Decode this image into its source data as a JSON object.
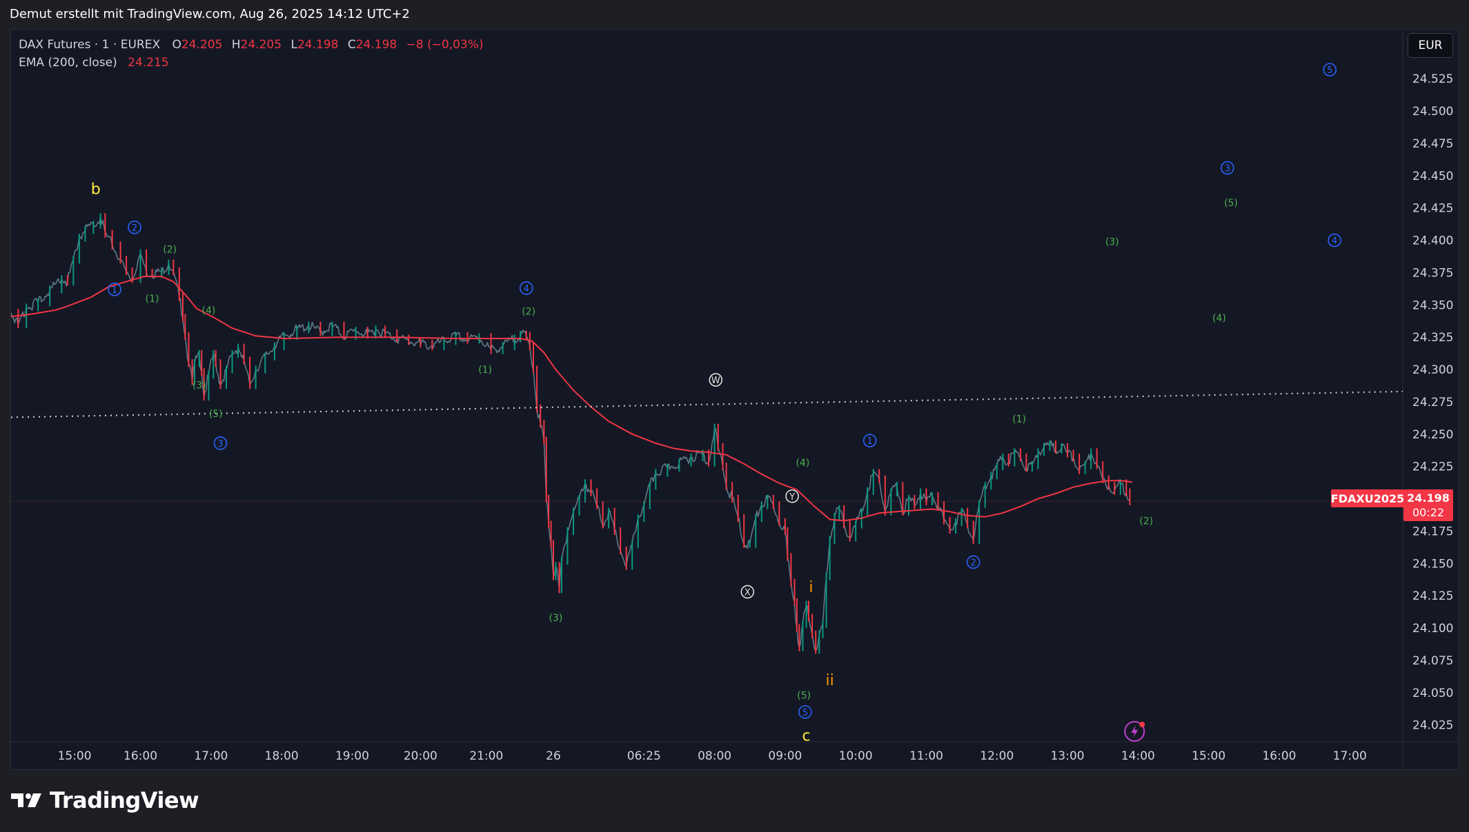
{
  "caption": "Demut erstellt mit TradingView.com, Aug 26, 2025 14:12 UTC+2",
  "legend": {
    "symbol": "DAX Futures · 1 · EUREX",
    "open_label": "O",
    "open": "24.205",
    "high_label": "H",
    "high": "24.205",
    "low_label": "L",
    "low": "24.198",
    "close_label": "C",
    "close": "24.198",
    "change": "−8 (−0,03%)",
    "ema_label": "EMA (200, close)",
    "ema_value": "24.215"
  },
  "currency": "EUR",
  "symbol_tag": "FDAXU2025",
  "price_tag": {
    "price": "24.198",
    "countdown": "00:22"
  },
  "brand": "TradingView",
  "colors": {
    "background": "#141824",
    "bear": "#f23645",
    "bull": "#089981",
    "ema": "#f23645",
    "wave_green": "#4caf50",
    "wave_blue": "#2962ff",
    "wave_yellow": "#ffeb3b",
    "wave_orange": "#ff9800",
    "wave_white": "#e0e0e0"
  },
  "chart_data": {
    "type": "line",
    "title": "DAX Futures · 1 · EUREX",
    "ylim": [
      24.012,
      24.563
    ],
    "y_ticks": [
      "24.525",
      "24.500",
      "24.475",
      "24.450",
      "24.425",
      "24.400",
      "24.375",
      "24.350",
      "24.325",
      "24.300",
      "24.275",
      "24.250",
      "24.225",
      "24.175",
      "24.150",
      "24.125",
      "24.100",
      "24.075",
      "24.050",
      "24.025"
    ],
    "x_ticks": [
      "15:00",
      "16:00",
      "17:00",
      "18:00",
      "19:00",
      "20:00",
      "21:00",
      "26",
      "06:25",
      "08:00",
      "09:00",
      "10:00",
      "11:00",
      "12:00",
      "13:00",
      "14:00",
      "15:00",
      "16:00",
      "17:00"
    ],
    "x_tick_index": [
      6,
      62,
      122,
      182,
      242,
      300,
      356,
      413,
      490,
      550,
      610,
      670,
      730,
      790,
      850,
      910,
      970,
      1030,
      1090
    ],
    "x_range": [
      -48,
      1135
    ],
    "price_series": {
      "name": "DAX Futures",
      "points": [
        [
          -48,
          24.344
        ],
        [
          -42,
          24.335
        ],
        [
          -35,
          24.348
        ],
        [
          -25,
          24.352
        ],
        [
          -15,
          24.362
        ],
        [
          -5,
          24.37
        ],
        [
          0,
          24.368
        ],
        [
          5,
          24.385
        ],
        [
          10,
          24.402
        ],
        [
          15,
          24.408
        ],
        [
          22,
          24.412
        ],
        [
          28,
          24.418
        ],
        [
          32,
          24.405
        ],
        [
          38,
          24.396
        ],
        [
          45,
          24.385
        ],
        [
          50,
          24.376
        ],
        [
          55,
          24.37
        ],
        [
          62,
          24.39
        ],
        [
          67,
          24.375
        ],
        [
          72,
          24.374
        ],
        [
          80,
          24.376
        ],
        [
          86,
          24.382
        ],
        [
          90,
          24.376
        ],
        [
          95,
          24.356
        ],
        [
          98,
          24.34
        ],
        [
          100,
          24.326
        ],
        [
          103,
          24.305
        ],
        [
          106,
          24.291
        ],
        [
          108,
          24.305
        ],
        [
          112,
          24.312
        ],
        [
          114,
          24.298
        ],
        [
          116,
          24.279
        ],
        [
          120,
          24.296
        ],
        [
          124,
          24.312
        ],
        [
          126,
          24.305
        ],
        [
          130,
          24.288
        ],
        [
          135,
          24.3
        ],
        [
          140,
          24.312
        ],
        [
          145,
          24.317
        ],
        [
          150,
          24.307
        ],
        [
          155,
          24.288
        ],
        [
          160,
          24.3
        ],
        [
          168,
          24.31
        ],
        [
          176,
          24.318
        ],
        [
          184,
          24.326
        ],
        [
          195,
          24.331
        ],
        [
          205,
          24.334
        ],
        [
          215,
          24.329
        ],
        [
          225,
          24.334
        ],
        [
          235,
          24.326
        ],
        [
          245,
          24.33
        ],
        [
          255,
          24.327
        ],
        [
          262,
          24.331
        ],
        [
          270,
          24.328
        ],
        [
          280,
          24.324
        ],
        [
          290,
          24.322
        ],
        [
          300,
          24.32
        ],
        [
          310,
          24.318
        ],
        [
          320,
          24.322
        ],
        [
          330,
          24.326
        ],
        [
          340,
          24.323
        ],
        [
          350,
          24.325
        ],
        [
          360,
          24.315
        ],
        [
          370,
          24.318
        ],
        [
          380,
          24.324
        ],
        [
          385,
          24.327
        ],
        [
          390,
          24.326
        ],
        [
          393,
          24.318
        ],
        [
          396,
          24.3
        ],
        [
          399,
          24.27
        ],
        [
          402,
          24.258
        ],
        [
          405,
          24.245
        ],
        [
          407,
          24.2
        ],
        [
          409,
          24.18
        ],
        [
          411,
          24.165
        ],
        [
          413,
          24.14
        ],
        [
          415,
          24.148
        ],
        [
          418,
          24.13
        ],
        [
          420,
          24.152
        ],
        [
          425,
          24.175
        ],
        [
          430,
          24.19
        ],
        [
          435,
          24.2
        ],
        [
          440,
          24.212
        ],
        [
          445,
          24.205
        ],
        [
          450,
          24.195
        ],
        [
          455,
          24.18
        ],
        [
          460,
          24.19
        ],
        [
          465,
          24.175
        ],
        [
          470,
          24.16
        ],
        [
          475,
          24.148
        ],
        [
          480,
          24.165
        ],
        [
          485,
          24.185
        ],
        [
          490,
          24.195
        ],
        [
          495,
          24.21
        ],
        [
          500,
          24.22
        ],
        [
          510,
          24.224
        ],
        [
          520,
          24.228
        ],
        [
          530,
          24.232
        ],
        [
          540,
          24.235
        ],
        [
          545,
          24.228
        ],
        [
          550,
          24.255
        ],
        [
          553,
          24.24
        ],
        [
          557,
          24.225
        ],
        [
          560,
          24.21
        ],
        [
          565,
          24.2
        ],
        [
          570,
          24.185
        ],
        [
          575,
          24.165
        ],
        [
          580,
          24.165
        ],
        [
          585,
          24.185
        ],
        [
          590,
          24.195
        ],
        [
          595,
          24.2
        ],
        [
          600,
          24.195
        ],
        [
          605,
          24.182
        ],
        [
          610,
          24.175
        ],
        [
          612,
          24.155
        ],
        [
          615,
          24.135
        ],
        [
          618,
          24.12
        ],
        [
          620,
          24.1
        ],
        [
          622,
          24.085
        ],
        [
          625,
          24.103
        ],
        [
          628,
          24.118
        ],
        [
          630,
          24.108
        ],
        [
          633,
          24.095
        ],
        [
          636,
          24.083
        ],
        [
          639,
          24.095
        ],
        [
          642,
          24.103
        ],
        [
          645,
          24.14
        ],
        [
          648,
          24.168
        ],
        [
          652,
          24.186
        ],
        [
          656,
          24.192
        ],
        [
          660,
          24.18
        ],
        [
          665,
          24.17
        ],
        [
          670,
          24.18
        ],
        [
          675,
          24.19
        ],
        [
          680,
          24.206
        ],
        [
          685,
          24.22
        ],
        [
          690,
          24.215
        ],
        [
          695,
          24.19
        ],
        [
          700,
          24.205
        ],
        [
          705,
          24.21
        ],
        [
          710,
          24.19
        ],
        [
          715,
          24.2
        ],
        [
          720,
          24.195
        ],
        [
          725,
          24.205
        ],
        [
          730,
          24.198
        ],
        [
          735,
          24.202
        ],
        [
          740,
          24.195
        ],
        [
          745,
          24.183
        ],
        [
          750,
          24.176
        ],
        [
          755,
          24.182
        ],
        [
          760,
          24.19
        ],
        [
          765,
          24.18
        ],
        [
          770,
          24.168
        ],
        [
          775,
          24.196
        ],
        [
          780,
          24.21
        ],
        [
          785,
          24.218
        ],
        [
          790,
          24.225
        ],
        [
          795,
          24.232
        ],
        [
          800,
          24.228
        ],
        [
          805,
          24.236
        ],
        [
          810,
          24.232
        ],
        [
          815,
          24.224
        ],
        [
          820,
          24.226
        ],
        [
          825,
          24.236
        ],
        [
          830,
          24.24
        ],
        [
          835,
          24.242
        ],
        [
          840,
          24.238
        ],
        [
          845,
          24.24
        ],
        [
          850,
          24.235
        ],
        [
          855,
          24.232
        ],
        [
          860,
          24.222
        ],
        [
          865,
          24.226
        ],
        [
          870,
          24.236
        ],
        [
          875,
          24.226
        ],
        [
          880,
          24.215
        ],
        [
          885,
          24.21
        ],
        [
          890,
          24.206
        ],
        [
          895,
          24.212
        ],
        [
          900,
          24.205
        ],
        [
          903,
          24.198
        ]
      ]
    },
    "ema_series": {
      "name": "EMA (200, close)",
      "points": [
        [
          -48,
          24.341
        ],
        [
          -30,
          24.343
        ],
        [
          -10,
          24.346
        ],
        [
          0,
          24.349
        ],
        [
          20,
          24.356
        ],
        [
          35,
          24.364
        ],
        [
          50,
          24.368
        ],
        [
          65,
          24.372
        ],
        [
          80,
          24.372
        ],
        [
          90,
          24.368
        ],
        [
          100,
          24.358
        ],
        [
          110,
          24.347
        ],
        [
          125,
          24.34
        ],
        [
          140,
          24.332
        ],
        [
          160,
          24.326
        ],
        [
          185,
          24.324
        ],
        [
          230,
          24.325
        ],
        [
          280,
          24.325
        ],
        [
          330,
          24.324
        ],
        [
          370,
          24.324
        ],
        [
          385,
          24.324
        ],
        [
          395,
          24.322
        ],
        [
          405,
          24.313
        ],
        [
          415,
          24.3
        ],
        [
          430,
          24.284
        ],
        [
          445,
          24.271
        ],
        [
          460,
          24.26
        ],
        [
          480,
          24.25
        ],
        [
          500,
          24.243
        ],
        [
          515,
          24.239
        ],
        [
          530,
          24.237
        ],
        [
          545,
          24.236
        ],
        [
          560,
          24.234
        ],
        [
          575,
          24.227
        ],
        [
          590,
          24.219
        ],
        [
          605,
          24.212
        ],
        [
          620,
          24.207
        ],
        [
          635,
          24.194
        ],
        [
          648,
          24.184
        ],
        [
          660,
          24.183
        ],
        [
          675,
          24.185
        ],
        [
          690,
          24.189
        ],
        [
          705,
          24.19
        ],
        [
          720,
          24.191
        ],
        [
          735,
          24.192
        ],
        [
          750,
          24.19
        ],
        [
          765,
          24.187
        ],
        [
          780,
          24.186
        ],
        [
          795,
          24.189
        ],
        [
          810,
          24.194
        ],
        [
          825,
          24.2
        ],
        [
          840,
          24.204
        ],
        [
          855,
          24.209
        ],
        [
          870,
          24.212
        ],
        [
          885,
          24.214
        ],
        [
          895,
          24.214
        ],
        [
          905,
          24.213
        ]
      ]
    },
    "last_price": 24.198,
    "current_price_line": 24.198,
    "trend_line": {
      "style": "dotted",
      "from": [
        -48,
        24.263
      ],
      "to": [
        1135,
        24.283
      ]
    },
    "wave_labels": [
      {
        "text": "b",
        "color": "yellow",
        "x": 24,
        "y": 24.44
      },
      {
        "text": "2",
        "circled": true,
        "color": "blue",
        "x": 57,
        "y": 24.41
      },
      {
        "text": "(2)",
        "color": "green",
        "x": 87,
        "y": 24.393
      },
      {
        "text": "1",
        "circled": true,
        "color": "blue",
        "x": 40,
        "y": 24.362
      },
      {
        "text": "(1)",
        "color": "green",
        "x": 72,
        "y": 24.355
      },
      {
        "text": "(4)",
        "color": "green",
        "x": 120,
        "y": 24.346
      },
      {
        "text": "(3)",
        "color": "green",
        "x": 112,
        "y": 24.288
      },
      {
        "text": "(5)",
        "color": "green",
        "x": 126,
        "y": 24.266
      },
      {
        "text": "3",
        "circled": true,
        "color": "blue",
        "x": 130,
        "y": 24.243
      },
      {
        "text": "4",
        "circled": true,
        "color": "blue",
        "x": 390,
        "y": 24.363
      },
      {
        "text": "(2)",
        "color": "green",
        "x": 392,
        "y": 24.345
      },
      {
        "text": "(1)",
        "color": "green",
        "x": 355,
        "y": 24.3
      },
      {
        "text": "(3)",
        "color": "green",
        "x": 415,
        "y": 24.108
      },
      {
        "text": "W",
        "circled": true,
        "color": "white",
        "x": 551,
        "y": 24.292
      },
      {
        "text": "X",
        "circled": true,
        "color": "white",
        "x": 578,
        "y": 24.128
      },
      {
        "text": "Y",
        "circled": true,
        "color": "white",
        "x": 616,
        "y": 24.202
      },
      {
        "text": "(4)",
        "color": "green",
        "x": 625,
        "y": 24.228
      },
      {
        "text": "i",
        "color": "orange",
        "x": 632,
        "y": 24.132
      },
      {
        "text": "ii",
        "color": "orange",
        "x": 648,
        "y": 24.06
      },
      {
        "text": "(5)",
        "color": "green",
        "x": 626,
        "y": 24.048
      },
      {
        "text": "5",
        "circled": true,
        "color": "blue",
        "x": 627,
        "y": 24.035
      },
      {
        "text": "c",
        "color": "yellow",
        "x": 628,
        "y": 24.017
      },
      {
        "text": "1",
        "circled": true,
        "color": "blue",
        "x": 682,
        "y": 24.245
      },
      {
        "text": "2",
        "circled": true,
        "color": "blue",
        "x": 770,
        "y": 24.151
      },
      {
        "text": "(1)",
        "color": "green",
        "x": 809,
        "y": 24.262
      },
      {
        "text": "(2)",
        "color": "green",
        "x": 917,
        "y": 24.183
      },
      {
        "text": "(3)",
        "color": "green",
        "x": 888,
        "y": 24.399
      },
      {
        "text": "3",
        "circled": true,
        "color": "blue",
        "x": 986,
        "y": 24.456
      },
      {
        "text": "(5)",
        "color": "green",
        "x": 989,
        "y": 24.429
      },
      {
        "text": "(4)",
        "color": "green",
        "x": 979,
        "y": 24.34
      },
      {
        "text": "4",
        "circled": true,
        "color": "blue",
        "x": 1077,
        "y": 24.4
      },
      {
        "text": "5",
        "circled": true,
        "color": "blue",
        "x": 1073,
        "y": 24.532
      }
    ]
  }
}
